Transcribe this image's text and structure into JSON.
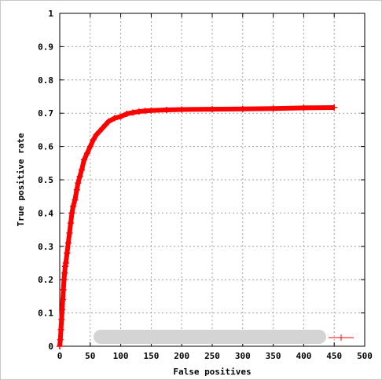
{
  "chart_data": {
    "type": "line",
    "title": "",
    "xlabel": "False positives",
    "ylabel": "True positive rate",
    "xlim": [
      0,
      500
    ],
    "ylim": [
      0,
      1
    ],
    "x_ticks": [
      "0",
      "50",
      "100",
      "150",
      "200",
      "250",
      "300",
      "350",
      "400",
      "450",
      "500"
    ],
    "y_ticks": [
      "0",
      "0.1",
      "0.2",
      "0.3",
      "0.4",
      "0.5",
      "0.6",
      "0.7",
      "0.8",
      "0.9",
      "1"
    ],
    "grid": true,
    "legend_placement": "bottom",
    "legend_text_obscured": true,
    "series": [
      {
        "color": "#ff0000",
        "marker": "plus",
        "x": [
          0,
          1,
          2,
          3,
          4,
          5,
          6,
          7,
          8,
          9,
          10,
          12,
          14,
          16,
          18,
          20,
          22,
          25,
          28,
          30,
          33,
          36,
          40,
          45,
          50,
          55,
          60,
          65,
          70,
          75,
          80,
          90,
          100,
          110,
          120,
          130,
          140,
          150,
          175,
          200,
          250,
          300,
          350,
          400,
          450
        ],
        "y": [
          0.0,
          0.02,
          0.05,
          0.08,
          0.11,
          0.14,
          0.17,
          0.2,
          0.22,
          0.24,
          0.25,
          0.28,
          0.31,
          0.34,
          0.37,
          0.4,
          0.42,
          0.44,
          0.47,
          0.49,
          0.51,
          0.53,
          0.56,
          0.58,
          0.6,
          0.62,
          0.635,
          0.645,
          0.655,
          0.665,
          0.675,
          0.685,
          0.69,
          0.698,
          0.702,
          0.705,
          0.707,
          0.708,
          0.71,
          0.711,
          0.712,
          0.713,
          0.714,
          0.716,
          0.717
        ]
      }
    ]
  }
}
